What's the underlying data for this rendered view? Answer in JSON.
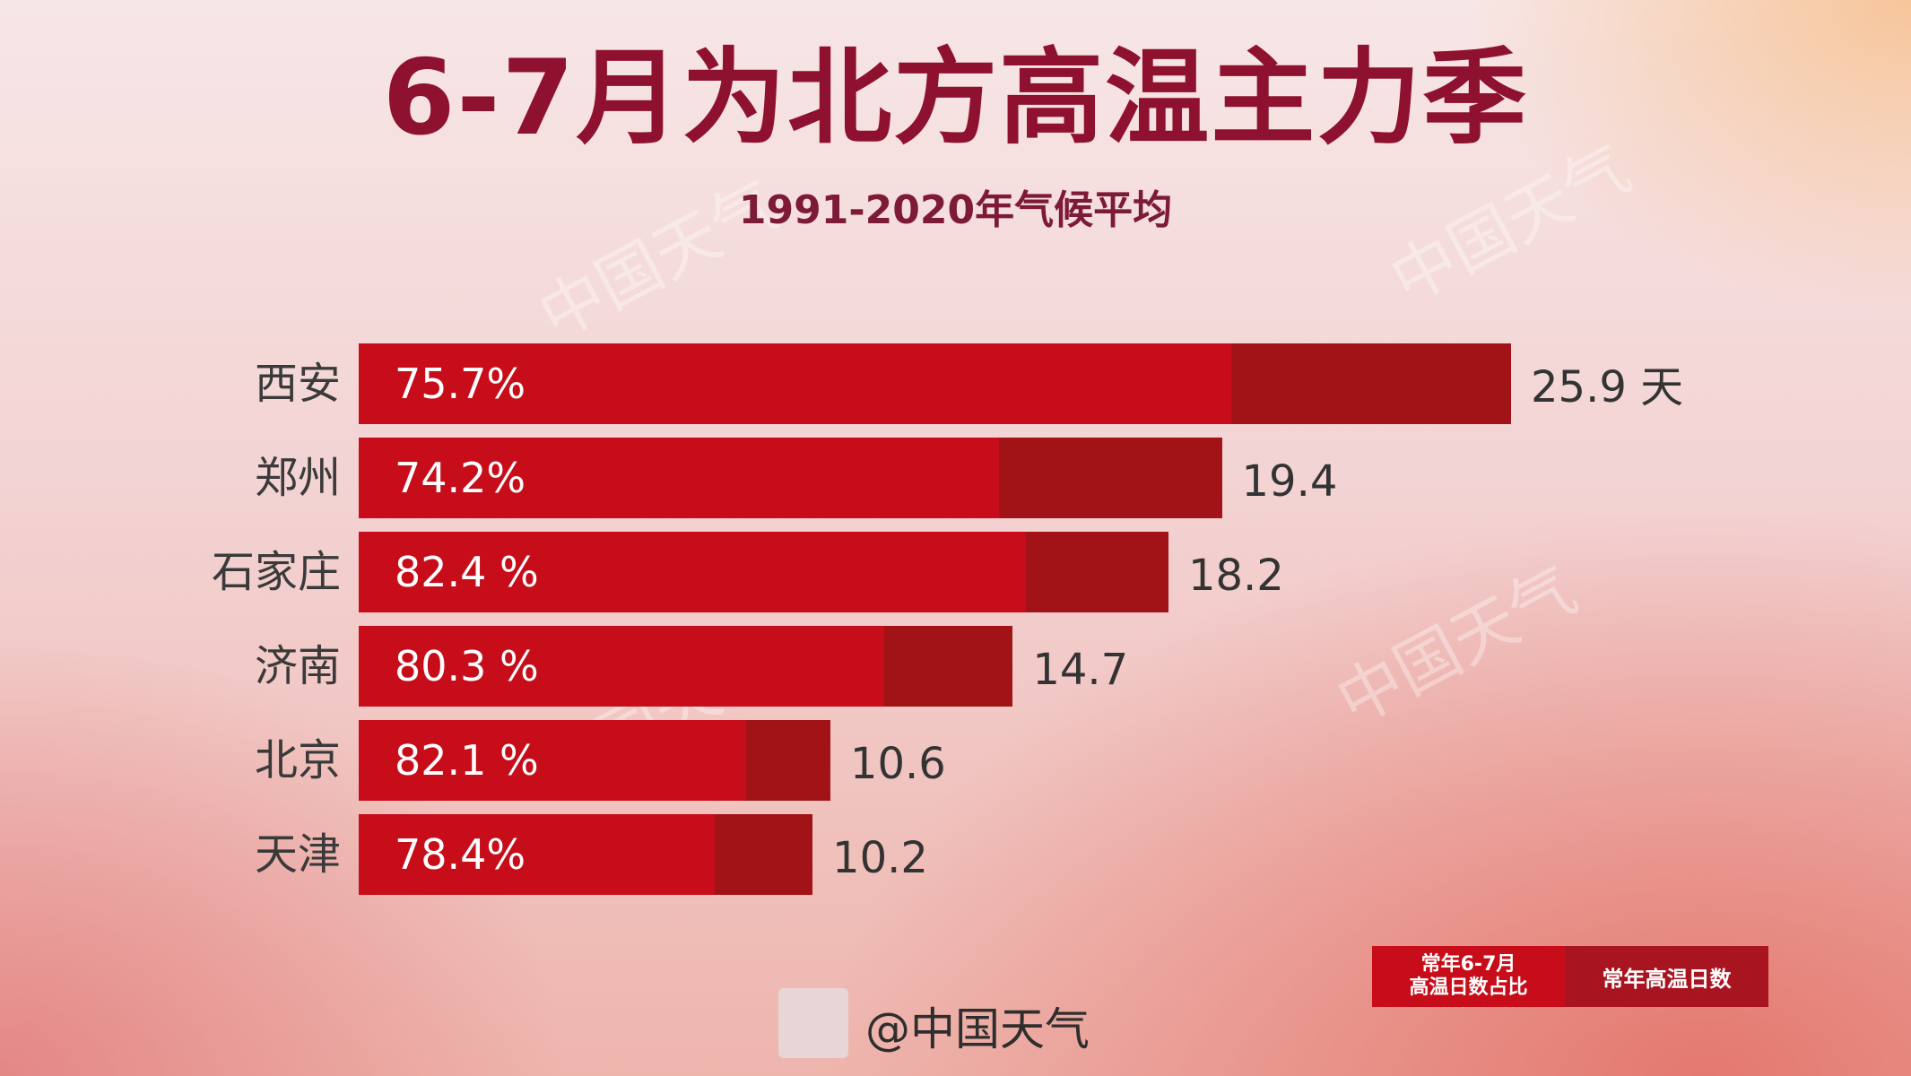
{
  "title": "6-7月为北方高温主力季",
  "subtitle": "1991-2020年气候平均",
  "chart_data": {
    "type": "bar",
    "orientation": "horizontal",
    "categories": [
      "西安",
      "郑州",
      "石家庄",
      "济南",
      "北京",
      "天津"
    ],
    "series": [
      {
        "name": "常年高温日数",
        "values": [
          25.9,
          19.4,
          18.2,
          14.7,
          10.6,
          10.2
        ]
      },
      {
        "name": "常年6-7月高温日数占比",
        "values": [
          75.7,
          74.2,
          82.4,
          80.3,
          82.1,
          78.4
        ]
      }
    ],
    "percent_labels": [
      "75.7%",
      "74.2%",
      "82.4 %",
      "80.3 %",
      "82.1 %",
      "78.4%"
    ],
    "day_labels": [
      "25.9 天",
      "19.4",
      "18.2",
      "14.7",
      "10.6",
      "10.2"
    ],
    "colors": {
      "total": "#a21318",
      "share": "#c70d19"
    },
    "legend_position": "bottom-right"
  },
  "legend": {
    "share_label_line1": "常年6-7月",
    "share_label_line2": "高温日数占比",
    "total_label": "常年高温日数"
  },
  "credit": "@中国天气",
  "watermark": "中国天气"
}
